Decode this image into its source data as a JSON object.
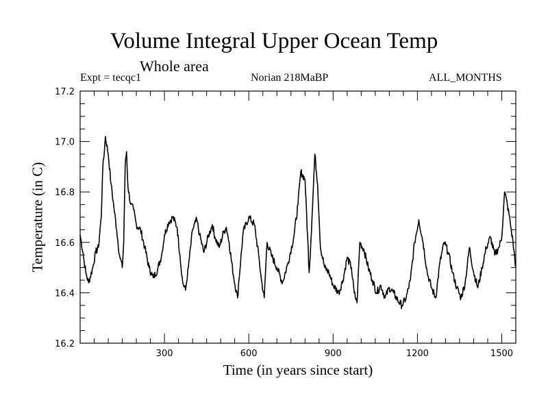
{
  "chart_data": {
    "type": "line",
    "title": "Volume Integral Upper Ocean Temp",
    "subtitle": "Whole area",
    "left_label": "Expt = tecqc1",
    "center_label": "Norian 218MaBP",
    "right_label": "ALL_MONTHS",
    "xlabel": "Time (in years since start)",
    "ylabel": "Temperature (in C)",
    "xlim": [
      0,
      1550
    ],
    "ylim": [
      16.2,
      17.2
    ],
    "xticks": [
      300,
      600,
      900,
      1200,
      1500
    ],
    "xtick_labels": [
      "300",
      "600",
      "900",
      "1200",
      "1500"
    ],
    "yticks": [
      16.2,
      16.4,
      16.6,
      16.8,
      17.0,
      17.2
    ],
    "ytick_labels": [
      "16.2",
      "16.4",
      "16.6",
      "16.8",
      "17.0",
      "17.2"
    ],
    "grid": false,
    "series": [
      {
        "name": "Temperature",
        "x": [
          0,
          10,
          20,
          30,
          45,
          55,
          65,
          75,
          80,
          90,
          100,
          110,
          120,
          130,
          140,
          150,
          155,
          160,
          165,
          170,
          180,
          190,
          200,
          215,
          230,
          245,
          260,
          275,
          290,
          300,
          315,
          330,
          345,
          355,
          365,
          375,
          385,
          400,
          415,
          425,
          440,
          455,
          470,
          480,
          495,
          510,
          520,
          530,
          545,
          560,
          565,
          580,
          600,
          620,
          635,
          645,
          655,
          665,
          680,
          700,
          720,
          740,
          760,
          775,
          785,
          800,
          815,
          825,
          835,
          845,
          855,
          870,
          885,
          900,
          920,
          935,
          950,
          965,
          975,
          985,
          995,
          1010,
          1025,
          1040,
          1055,
          1070,
          1085,
          1100,
          1115,
          1130,
          1145,
          1160,
          1175,
          1190,
          1205,
          1220,
          1235,
          1250,
          1265,
          1280,
          1295,
          1310,
          1325,
          1340,
          1355,
          1370,
          1385,
          1400,
          1415,
          1430,
          1445,
          1460,
          1475,
          1490,
          1500,
          1510,
          1520,
          1530,
          1540,
          1550
        ],
        "values": [
          16.63,
          16.56,
          16.48,
          16.44,
          16.5,
          16.56,
          16.58,
          16.7,
          16.88,
          17.02,
          16.95,
          16.83,
          16.74,
          16.65,
          16.55,
          16.5,
          16.6,
          16.9,
          16.96,
          16.82,
          16.75,
          16.73,
          16.67,
          16.65,
          16.58,
          16.5,
          16.46,
          16.49,
          16.55,
          16.63,
          16.68,
          16.7,
          16.66,
          16.55,
          16.44,
          16.41,
          16.5,
          16.65,
          16.69,
          16.63,
          16.56,
          16.62,
          16.67,
          16.62,
          16.58,
          16.64,
          16.66,
          16.6,
          16.47,
          16.38,
          16.45,
          16.64,
          16.7,
          16.67,
          16.55,
          16.45,
          16.38,
          16.6,
          16.55,
          16.5,
          16.44,
          16.52,
          16.62,
          16.75,
          16.88,
          16.85,
          16.48,
          16.7,
          16.95,
          16.83,
          16.58,
          16.5,
          16.48,
          16.43,
          16.4,
          16.45,
          16.54,
          16.5,
          16.4,
          16.36,
          16.6,
          16.57,
          16.5,
          16.45,
          16.4,
          16.43,
          16.38,
          16.42,
          16.4,
          16.37,
          16.35,
          16.38,
          16.45,
          16.6,
          16.69,
          16.6,
          16.48,
          16.42,
          16.38,
          16.52,
          16.6,
          16.56,
          16.48,
          16.42,
          16.38,
          16.44,
          16.58,
          16.48,
          16.42,
          16.5,
          16.58,
          16.62,
          16.55,
          16.58,
          16.62,
          16.8,
          16.75,
          16.68,
          16.6,
          16.5
        ]
      }
    ]
  }
}
